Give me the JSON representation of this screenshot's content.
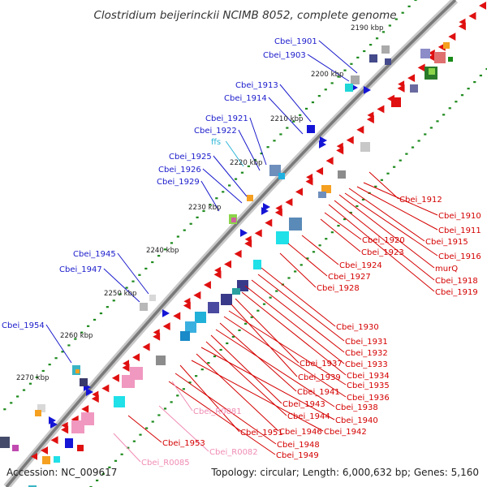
{
  "title": "Clostridium beijerinckii NCIMB 8052, complete genome",
  "footer": {
    "accession": "Accession: NC_009617",
    "summary": "Topology: circular; Length: 6,000,632 bp; Genes: 5,160"
  },
  "colors": {
    "forward_label": "#1a1acc",
    "reverse_label": "#d40000",
    "rna_label": "#f08cb4",
    "misc_label": "#2ab5d8",
    "backbone": "#8c8c8c",
    "tick_dots": "#1d8a1d"
  },
  "ticks": [
    "2190 kbp",
    "2200 kbp",
    "2210 kbp",
    "2220 kbp",
    "2230 kbp",
    "2240 kbp",
    "2250 kbp",
    "2260 kbp",
    "2270 kbp"
  ],
  "labels_left": [
    {
      "text": "Cbei_1901",
      "type": "cds"
    },
    {
      "text": "Cbei_1903",
      "type": "cds"
    },
    {
      "text": "Cbei_1913",
      "type": "cds"
    },
    {
      "text": "Cbei_1914",
      "type": "cds"
    },
    {
      "text": "Cbei_1921",
      "type": "cds"
    },
    {
      "text": "Cbei_1922",
      "type": "cds"
    },
    {
      "text": "ffs",
      "type": "misc"
    },
    {
      "text": "Cbei_1925",
      "type": "cds"
    },
    {
      "text": "Cbei_1926",
      "type": "cds"
    },
    {
      "text": "Cbei_1929",
      "type": "cds"
    },
    {
      "text": "Cbei_1945",
      "type": "cds"
    },
    {
      "text": "Cbei_1947",
      "type": "cds"
    },
    {
      "text": "Cbei_1954",
      "type": "cds"
    }
  ],
  "labels_right": [
    {
      "text": "Cbei_1912"
    },
    {
      "text": "Cbei_1910"
    },
    {
      "text": "Cbei_1911"
    },
    {
      "text": "Cbei_1915"
    },
    {
      "text": "Cbei_1916"
    },
    {
      "text": "murQ"
    },
    {
      "text": "Cbei_1918"
    },
    {
      "text": "Cbei_1919"
    },
    {
      "text": "Cbei_1920"
    },
    {
      "text": "Cbei_1923"
    },
    {
      "text": "Cbei_1924"
    },
    {
      "text": "Cbei_1927"
    },
    {
      "text": "Cbei_1928"
    },
    {
      "text": "Cbei_1930"
    },
    {
      "text": "Cbei_1931"
    },
    {
      "text": "Cbei_1932"
    },
    {
      "text": "Cbei_1933"
    },
    {
      "text": "Cbei_1934"
    },
    {
      "text": "Cbei_1937"
    },
    {
      "text": "Cbei_1939"
    },
    {
      "text": "Cbei_1935"
    },
    {
      "text": "Cbei_1936"
    },
    {
      "text": "Cbei_1941"
    },
    {
      "text": "Cbei_1938"
    },
    {
      "text": "Cbei_1943"
    },
    {
      "text": "Cbei_1944"
    },
    {
      "text": "Cbei_1940"
    },
    {
      "text": "Cbei_1946"
    },
    {
      "text": "Cbei_1942"
    },
    {
      "text": "Cbei_1951"
    },
    {
      "text": "Cbei_1948"
    },
    {
      "text": "Cbei_1949"
    },
    {
      "text": "Cbei_1953"
    },
    {
      "text": "Cbei_R0081",
      "type": "rna"
    },
    {
      "text": "Cbei_R0082",
      "type": "rna"
    },
    {
      "text": "Cbei_R0085",
      "type": "rna"
    }
  ]
}
